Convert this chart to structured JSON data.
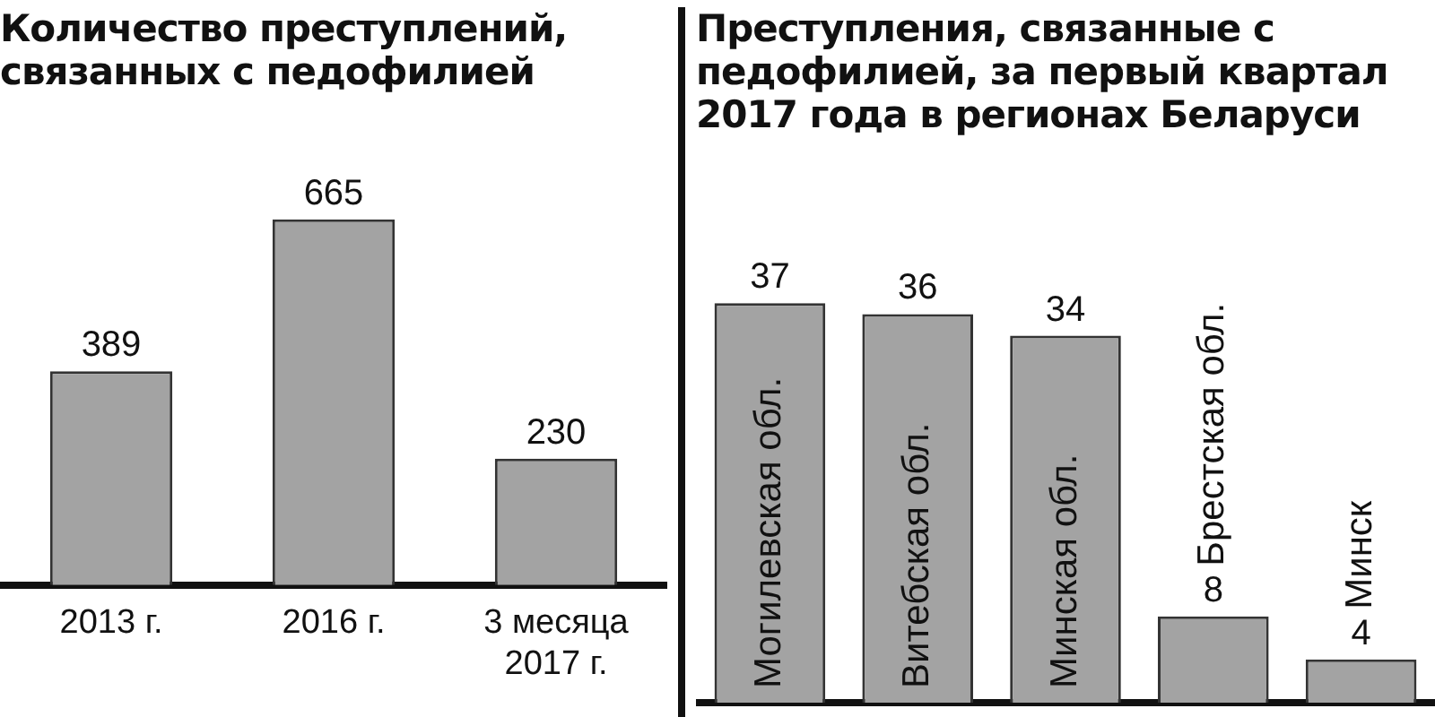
{
  "chart_data": [
    {
      "type": "bar",
      "title": "Количество преступлений, связанных с педофилией",
      "categories": [
        "2013 г.",
        "2016 г.",
        "3 месяца 2017 г."
      ],
      "values": [
        389,
        665,
        230
      ],
      "color": "#a3a3a3",
      "data_labels": true,
      "grid": false,
      "legend": false
    },
    {
      "type": "bar",
      "title": "Преступления, связанные с педофилией, за первый квартал 2017 года в регионах Беларуси",
      "categories": [
        "Могилевская обл.",
        "Витебская обл.",
        "Минская обл.",
        "Брестская обл.",
        "Минск"
      ],
      "values": [
        37,
        36,
        34,
        8,
        4
      ],
      "color": "#a3a3a3",
      "data_labels": true,
      "grid": false,
      "legend": false
    }
  ]
}
